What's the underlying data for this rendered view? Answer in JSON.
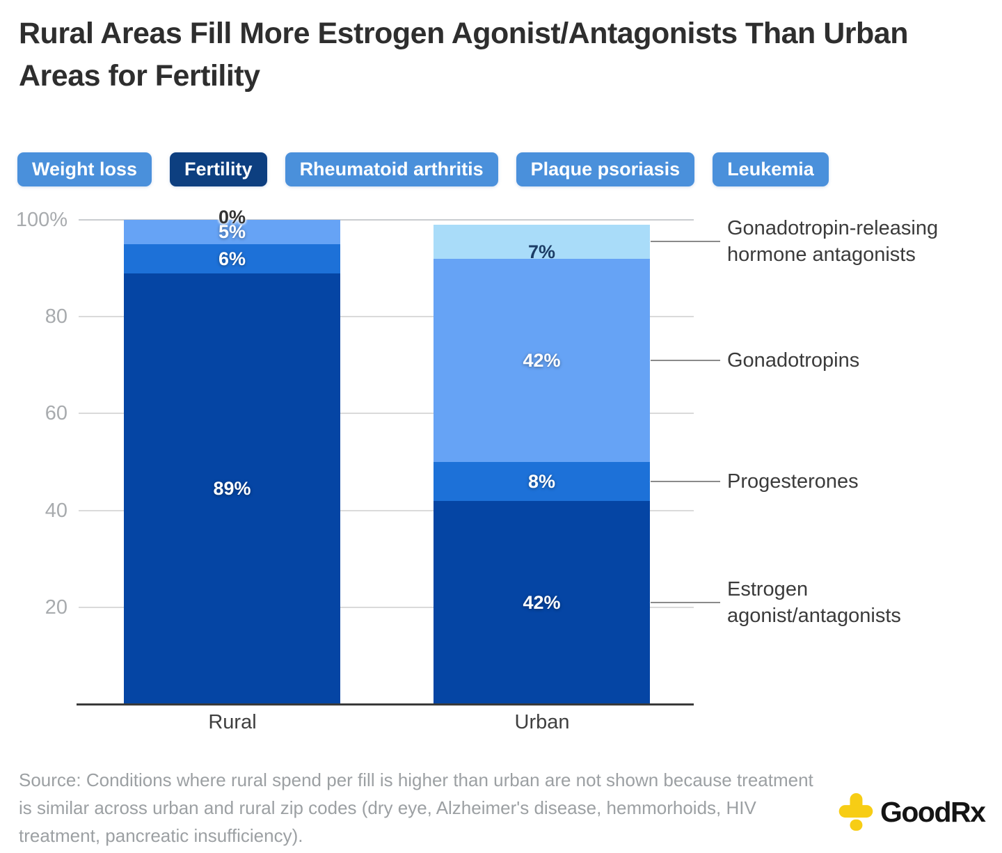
{
  "header": {
    "title": "Rural Areas Fill More Estrogen Agonist/Antagonists Than Urban Areas for Fertility"
  },
  "tabs": [
    {
      "label": "Weight loss",
      "active": false
    },
    {
      "label": "Fertility",
      "active": true
    },
    {
      "label": "Rheumatoid arthritis",
      "active": false
    },
    {
      "label": "Plaque psoriasis",
      "active": false
    },
    {
      "label": "Leukemia",
      "active": false
    }
  ],
  "colors": {
    "tab_inactive": "#4a90db",
    "tab_active": "#0d3f80",
    "gridline_top": "#c9cccf",
    "gridline": "#dadada",
    "axis": "#3a3a3a",
    "logo_yellow": "#f7cd15"
  },
  "chart_data": {
    "type": "bar",
    "stacked": true,
    "title": "Rural Areas Fill More Estrogen Agonist/Antagonists Than Urban Areas for Fertility",
    "categories": [
      "Rural",
      "Urban"
    ],
    "series_note": "listed bottom-to-top of the stack; legend shown top-to-bottom at right",
    "series": [
      {
        "name": "Estrogen agonist/antagonists",
        "color": "#0545a4",
        "values": [
          89,
          42
        ]
      },
      {
        "name": "Progesterones",
        "color": "#1d71d8",
        "values": [
          6,
          8
        ]
      },
      {
        "name": "Gonadotropins",
        "color": "#66a3f5",
        "values": [
          5,
          42
        ]
      },
      {
        "name": "Gonadotropin-releasing hormone antagonists",
        "color": "#a9dcf9",
        "values": [
          0,
          7
        ]
      }
    ],
    "bar_value_labels": {
      "Rural": [
        "89%",
        "6%",
        "5%",
        "0%"
      ],
      "Urban": [
        "42%",
        "8%",
        "42%",
        "7%"
      ]
    },
    "ylim": [
      0,
      100
    ],
    "yticks": [
      {
        "label": "100%",
        "value": 100
      },
      {
        "label": "80",
        "value": 80
      },
      {
        "label": "60",
        "value": 60
      },
      {
        "label": "40",
        "value": 40
      },
      {
        "label": "20",
        "value": 20
      }
    ],
    "grid": true,
    "legend_position": "right"
  },
  "footer": {
    "source": "Source: Conditions where rural spend per fill is higher than urban are not shown because treatment is similar across urban and rural zip codes (dry eye, Alzheimer's disease, hemmorhoids, HIV treatment, pancreatic insufficiency).",
    "logo_text": "GoodRx"
  }
}
